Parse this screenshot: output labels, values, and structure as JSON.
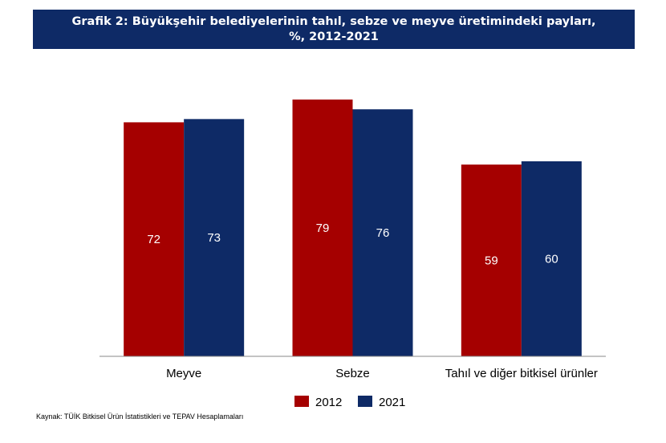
{
  "chart_data": {
    "type": "bar",
    "title_line1": "Grafik 2: Büyükşehir belediyelerinin tahıl, sebze ve meyve üretimindeki payları,",
    "title_line2": "%,  2012-2021",
    "categories": [
      "Meyve",
      "Sebze",
      "Tahıl ve diğer bitkisel ürünler"
    ],
    "series": [
      {
        "name": "2012",
        "values": [
          72,
          79,
          59
        ],
        "color": "#a50000"
      },
      {
        "name": "2021",
        "values": [
          73,
          76,
          60
        ],
        "color": "#0e2a66"
      }
    ],
    "ylim": [
      0,
      100
    ],
    "grid": false,
    "legend": "bottom-center",
    "source": "Kaynak: TÜİK Bitkisel Ürün İstatistikleri ve TEPAV Hesaplamaları"
  }
}
